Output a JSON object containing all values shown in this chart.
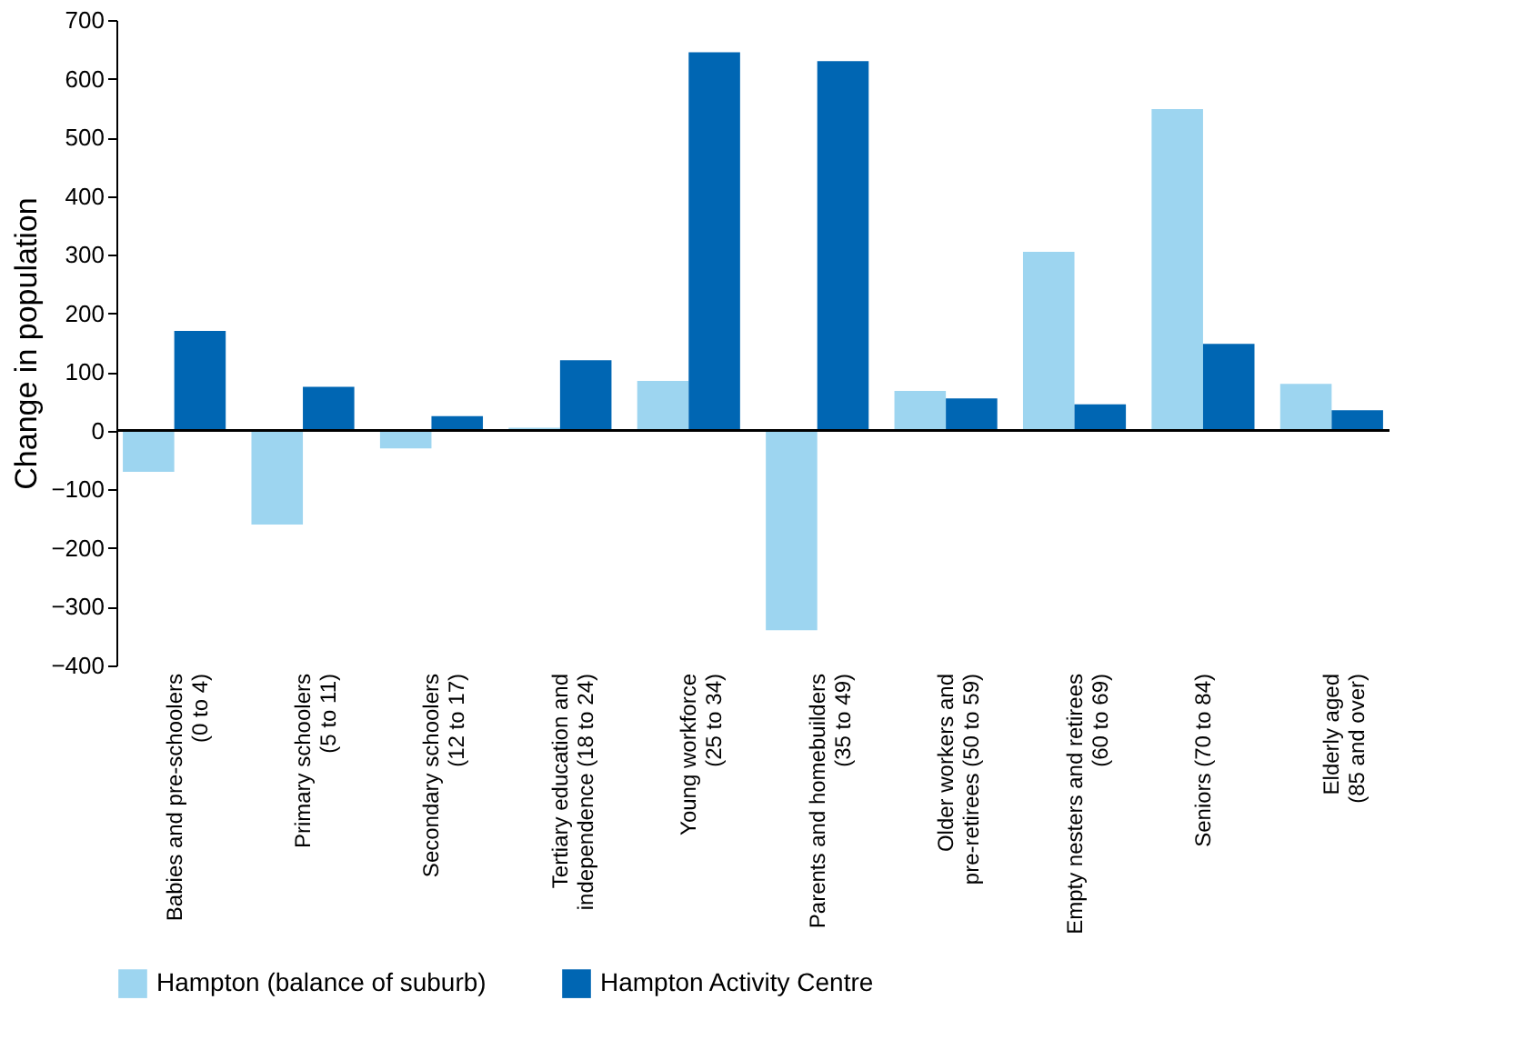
{
  "chart_data": {
    "type": "bar",
    "categories": [
      "Babies and pre-schoolers\n(0 to 4)",
      "Primary schoolers\n(5 to 11)",
      "Secondary schoolers\n(12 to 17)",
      "Tertiary education and\nindependence (18 to 24)",
      "Young workforce\n(25 to 34)",
      "Parents and homebuilders\n(35 to 49)",
      "Older workers and\npre-retirees (50 to 59)",
      "Empty nesters and retirees\n(60 to 69)",
      "Seniors (70 to 84)",
      "Elderly aged\n(85 and over)"
    ],
    "series": [
      {
        "name": "Hampton (balance of suburb)",
        "color": "#9dd5f0",
        "values": [
          -70,
          -160,
          -30,
          5,
          85,
          -340,
          68,
          305,
          548,
          80
        ]
      },
      {
        "name": "Hampton Activity Centre",
        "color": "#0066b3",
        "values": [
          170,
          75,
          25,
          120,
          645,
          630,
          55,
          45,
          148,
          35
        ]
      }
    ],
    "ylabel": "Change in population",
    "ylim": [
      -400,
      700
    ],
    "yticks": [
      -400,
      -300,
      -200,
      -100,
      0,
      100,
      200,
      300,
      400,
      500,
      600,
      700
    ],
    "legend": "bottom"
  }
}
